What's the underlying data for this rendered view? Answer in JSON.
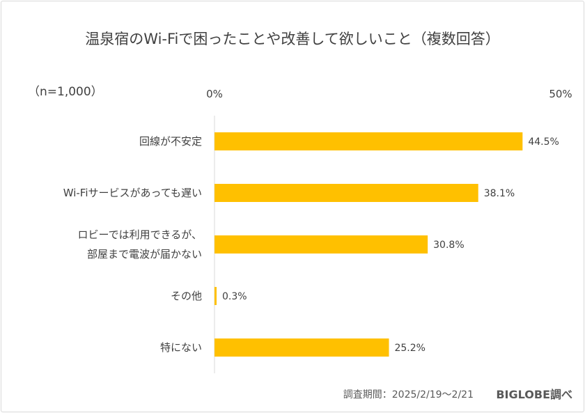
{
  "chart_data": {
    "type": "bar",
    "orientation": "horizontal",
    "title": "温泉宿のWi-Fiで困ったことや改善して欲しいこと（複数回答）",
    "sample_note": "（n=1,000）",
    "categories": [
      "回線が不安定",
      "Wi-Fiサービスがあっても遅い",
      "ロビーでは利用できるが、\n部屋まで電波が届かない",
      "その他",
      "特にない"
    ],
    "values": [
      44.5,
      38.1,
      30.8,
      0.3,
      25.2
    ],
    "data_labels": [
      "44.5%",
      "38.1%",
      "30.8%",
      "0.3%",
      "25.2%"
    ],
    "xlim": [
      0,
      50
    ],
    "tick_labels": [
      "0%",
      "50%"
    ],
    "grid": false,
    "bar_color": "#FFC000"
  },
  "footer": {
    "period": "調査期間：2025/2/19～2/21",
    "source": "BIGLOBE調べ"
  }
}
